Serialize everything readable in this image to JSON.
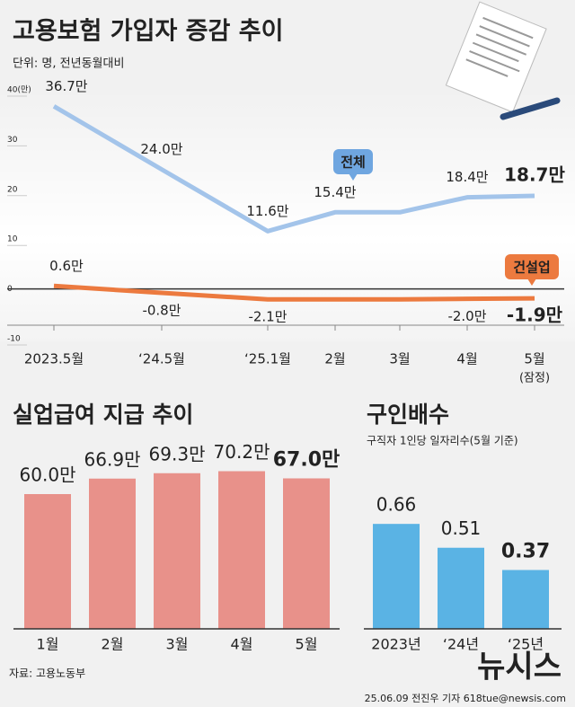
{
  "chart_data": [
    {
      "type": "line",
      "title": "고용보험 가입자 증감 추이",
      "subtitle": "단위: 명, 전년동월대비",
      "categories": [
        "2023.5월",
        "‘24.5월",
        "‘25.1월",
        "2월",
        "3월",
        "4월",
        "5월"
      ],
      "x_note": "(잠정)",
      "series": [
        {
          "name": "전체",
          "color": "#a3c4ea",
          "values": [
            36.7,
            24.0,
            11.6,
            15.4,
            15.4,
            18.4,
            18.7
          ],
          "value_labels": [
            "36.7만",
            "24.0만",
            "11.6만",
            "15.4만",
            null,
            "18.4만",
            "18.7만"
          ]
        },
        {
          "name": "건설업",
          "color": "#ec7a3f",
          "values": [
            0.6,
            -0.8,
            -2.1,
            -2.1,
            -2.1,
            -2.0,
            -1.9
          ],
          "value_labels": [
            "0.6만",
            "-0.8만",
            "-2.1만",
            null,
            null,
            "-2.0만",
            "-1.9만"
          ]
        }
      ],
      "ylim": [
        -10,
        40
      ],
      "yticks": [
        {
          "value": 40,
          "label": "40(만)"
        },
        30,
        20,
        10,
        0,
        -10
      ]
    },
    {
      "type": "bar",
      "title": "실업급여 지급 추이",
      "color": "#e8918a",
      "categories": [
        "1월",
        "2월",
        "3월",
        "4월",
        "5월"
      ],
      "values": [
        60.0,
        66.9,
        69.3,
        70.2,
        67.0
      ],
      "value_labels": [
        "60.0만",
        "66.9만",
        "69.3만",
        "70.2만",
        "67.0만"
      ]
    },
    {
      "type": "bar",
      "title": "구인배수",
      "subtitle": "구직자 1인당 일자리수(5월 기준)",
      "color": "#5ab3e4",
      "categories": [
        "2023년",
        "‘24년",
        "‘25년"
      ],
      "values": [
        0.66,
        0.51,
        0.37
      ]
    }
  ],
  "footer": {
    "source": "자료: 고용노동부",
    "credit": "25.06.09 전진우 기자 618tue@newsis.com",
    "logo": "뉴시스"
  }
}
